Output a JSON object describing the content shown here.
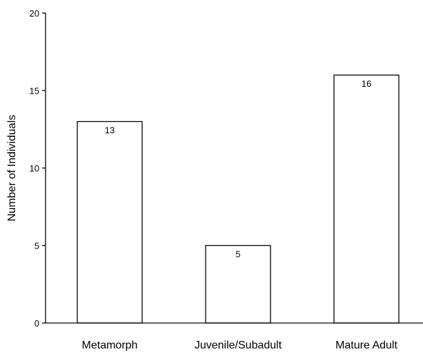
{
  "chart_data": {
    "type": "bar",
    "categories": [
      "Metamorph",
      "Juvenile/Subadult",
      "Mature Adult"
    ],
    "values": [
      13,
      5,
      16
    ],
    "data_labels": [
      "13",
      "5",
      "16"
    ],
    "title": "",
    "xlabel": "",
    "ylabel": "Number of Individuals",
    "ylim": [
      0,
      20
    ],
    "yticks": [
      0,
      5,
      10,
      15,
      20
    ],
    "grid": false,
    "legend": "none",
    "bar_fill": "#ffffff",
    "bar_stroke": "#000000"
  }
}
